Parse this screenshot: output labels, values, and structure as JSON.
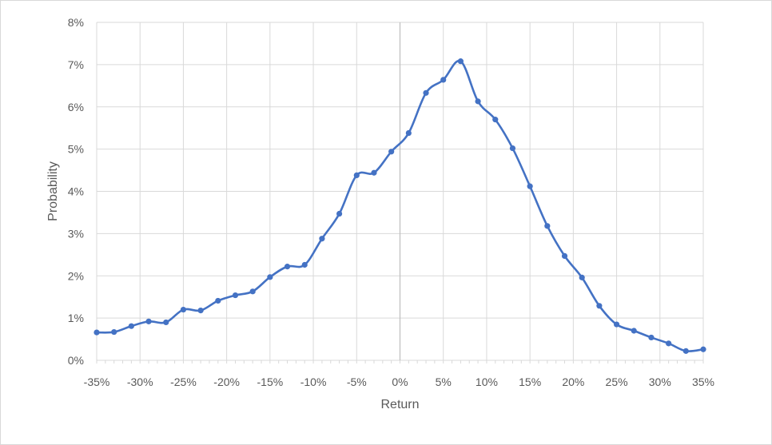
{
  "chart_data": {
    "type": "line",
    "xlabel": "Return",
    "ylabel": "Probability",
    "xlim": [
      -35,
      35
    ],
    "ylim": [
      0,
      8
    ],
    "x_ticks": [
      -35,
      -30,
      -25,
      -20,
      -15,
      -10,
      -5,
      0,
      5,
      10,
      15,
      20,
      25,
      30,
      35
    ],
    "x_tick_labels": [
      "-35%",
      "-30%",
      "-25%",
      "-20%",
      "-15%",
      "-10%",
      "-5%",
      "0%",
      "5%",
      "10%",
      "15%",
      "20%",
      "25%",
      "30%",
      "35%"
    ],
    "y_ticks": [
      0,
      1,
      2,
      3,
      4,
      5,
      6,
      7,
      8
    ],
    "y_tick_labels": [
      "0%",
      "1%",
      "2%",
      "3%",
      "4%",
      "5%",
      "6%",
      "7%",
      "8%"
    ],
    "grid": true,
    "legend": "none",
    "series": [
      {
        "color": "#4472c4",
        "x": [
          -35,
          -33,
          -31,
          -29,
          -27,
          -25,
          -23,
          -21,
          -19,
          -17,
          -15,
          -13,
          -11,
          -9,
          -7,
          -5,
          -3,
          -1,
          1,
          3,
          5,
          7,
          9,
          11,
          13,
          15,
          17,
          19,
          21,
          23,
          25,
          27,
          29,
          31,
          33,
          35
        ],
        "y": [
          0.66,
          0.67,
          0.81,
          0.92,
          0.9,
          1.2,
          1.18,
          1.41,
          1.54,
          1.63,
          1.97,
          2.22,
          2.26,
          2.88,
          3.47,
          4.38,
          4.44,
          4.94,
          5.38,
          6.33,
          6.64,
          7.08,
          6.13,
          5.7,
          5.02,
          4.12,
          3.18,
          2.47,
          1.96,
          1.29,
          0.85,
          0.7,
          0.54,
          0.4,
          0.22,
          0.26
        ]
      }
    ]
  }
}
